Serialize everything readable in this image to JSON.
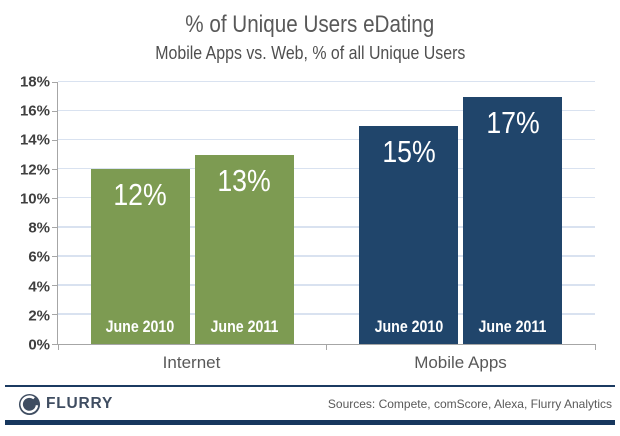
{
  "chart": {
    "title": "% of Unique Users eDating",
    "subtitle": "Mobile Apps vs. Web, % of all Unique Users"
  },
  "chart_data": {
    "type": "bar",
    "title": "% of Unique Users eDating",
    "subtitle": "Mobile Apps vs. Web, % of all Unique Users",
    "value_suffix": "%",
    "ylim": [
      0,
      18
    ],
    "ytick_step": 2,
    "ytick_labels": [
      "0%",
      "2%",
      "4%",
      "6%",
      "8%",
      "10%",
      "12%",
      "14%",
      "16%",
      "18%"
    ],
    "grid": true,
    "gridline_color": "#d9e2f0",
    "axis_color": "#a6a6a6",
    "legend_position": "none",
    "groups": [
      {
        "category": "Internet",
        "color": "#7d9b52",
        "bars": [
          {
            "label": "June 2010",
            "value": 12
          },
          {
            "label": "June 2011",
            "value": 13
          }
        ]
      },
      {
        "category": "Mobile Apps",
        "color": "#20456b",
        "bars": [
          {
            "label": "June 2010",
            "value": 15
          },
          {
            "label": "June 2011",
            "value": 17
          }
        ]
      }
    ]
  },
  "footer": {
    "logo_text": "FLURRY",
    "sources": "Sources: Compete, comScore, Alexa, Flurry Analytics"
  },
  "colors": {
    "green_bar": "#7d9b52",
    "navy_bar": "#20456b",
    "rule_navy": "#17375e",
    "logo_navy": "#3f4d61",
    "gridline": "#d9e2f0",
    "axis_gray": "#a6a6a6",
    "text_gray": "#595959"
  }
}
